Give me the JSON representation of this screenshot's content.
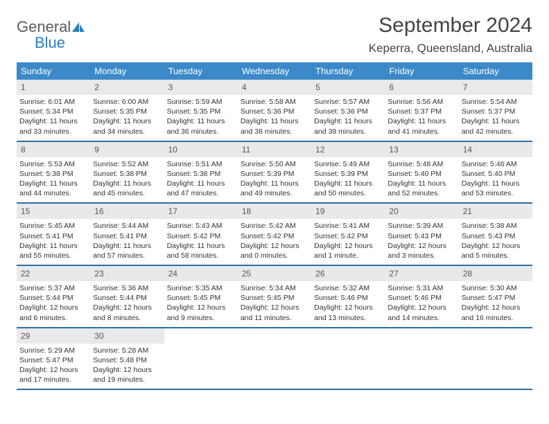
{
  "brand": {
    "general": "General",
    "blue": "Blue"
  },
  "title": "September 2024",
  "location": "Keperra, Queensland, Australia",
  "colors": {
    "header_bg": "#3b89c9",
    "week_border": "#2e6da4",
    "daynum_bg": "#e9e9e9",
    "logo_gray": "#5a5a5a",
    "logo_blue": "#2a7fbf"
  },
  "dow": [
    "Sunday",
    "Monday",
    "Tuesday",
    "Wednesday",
    "Thursday",
    "Friday",
    "Saturday"
  ],
  "days": [
    {
      "n": "1",
      "sr": "6:01 AM",
      "ss": "5:34 PM",
      "dl": "11 hours and 33 minutes."
    },
    {
      "n": "2",
      "sr": "6:00 AM",
      "ss": "5:35 PM",
      "dl": "11 hours and 34 minutes."
    },
    {
      "n": "3",
      "sr": "5:59 AM",
      "ss": "5:35 PM",
      "dl": "11 hours and 36 minutes."
    },
    {
      "n": "4",
      "sr": "5:58 AM",
      "ss": "5:36 PM",
      "dl": "11 hours and 38 minutes."
    },
    {
      "n": "5",
      "sr": "5:57 AM",
      "ss": "5:36 PM",
      "dl": "11 hours and 39 minutes."
    },
    {
      "n": "6",
      "sr": "5:56 AM",
      "ss": "5:37 PM",
      "dl": "11 hours and 41 minutes."
    },
    {
      "n": "7",
      "sr": "5:54 AM",
      "ss": "5:37 PM",
      "dl": "11 hours and 42 minutes."
    },
    {
      "n": "8",
      "sr": "5:53 AM",
      "ss": "5:38 PM",
      "dl": "11 hours and 44 minutes."
    },
    {
      "n": "9",
      "sr": "5:52 AM",
      "ss": "5:38 PM",
      "dl": "11 hours and 45 minutes."
    },
    {
      "n": "10",
      "sr": "5:51 AM",
      "ss": "5:38 PM",
      "dl": "11 hours and 47 minutes."
    },
    {
      "n": "11",
      "sr": "5:50 AM",
      "ss": "5:39 PM",
      "dl": "11 hours and 49 minutes."
    },
    {
      "n": "12",
      "sr": "5:49 AM",
      "ss": "5:39 PM",
      "dl": "11 hours and 50 minutes."
    },
    {
      "n": "13",
      "sr": "5:48 AM",
      "ss": "5:40 PM",
      "dl": "11 hours and 52 minutes."
    },
    {
      "n": "14",
      "sr": "5:46 AM",
      "ss": "5:40 PM",
      "dl": "11 hours and 53 minutes."
    },
    {
      "n": "15",
      "sr": "5:45 AM",
      "ss": "5:41 PM",
      "dl": "11 hours and 55 minutes."
    },
    {
      "n": "16",
      "sr": "5:44 AM",
      "ss": "5:41 PM",
      "dl": "11 hours and 57 minutes."
    },
    {
      "n": "17",
      "sr": "5:43 AM",
      "ss": "5:42 PM",
      "dl": "11 hours and 58 minutes."
    },
    {
      "n": "18",
      "sr": "5:42 AM",
      "ss": "5:42 PM",
      "dl": "12 hours and 0 minutes."
    },
    {
      "n": "19",
      "sr": "5:41 AM",
      "ss": "5:42 PM",
      "dl": "12 hours and 1 minute."
    },
    {
      "n": "20",
      "sr": "5:39 AM",
      "ss": "5:43 PM",
      "dl": "12 hours and 3 minutes."
    },
    {
      "n": "21",
      "sr": "5:38 AM",
      "ss": "5:43 PM",
      "dl": "12 hours and 5 minutes."
    },
    {
      "n": "22",
      "sr": "5:37 AM",
      "ss": "5:44 PM",
      "dl": "12 hours and 6 minutes."
    },
    {
      "n": "23",
      "sr": "5:36 AM",
      "ss": "5:44 PM",
      "dl": "12 hours and 8 minutes."
    },
    {
      "n": "24",
      "sr": "5:35 AM",
      "ss": "5:45 PM",
      "dl": "12 hours and 9 minutes."
    },
    {
      "n": "25",
      "sr": "5:34 AM",
      "ss": "5:45 PM",
      "dl": "12 hours and 11 minutes."
    },
    {
      "n": "26",
      "sr": "5:32 AM",
      "ss": "5:46 PM",
      "dl": "12 hours and 13 minutes."
    },
    {
      "n": "27",
      "sr": "5:31 AM",
      "ss": "5:46 PM",
      "dl": "12 hours and 14 minutes."
    },
    {
      "n": "28",
      "sr": "5:30 AM",
      "ss": "5:47 PM",
      "dl": "12 hours and 16 minutes."
    },
    {
      "n": "29",
      "sr": "5:29 AM",
      "ss": "5:47 PM",
      "dl": "12 hours and 17 minutes."
    },
    {
      "n": "30",
      "sr": "5:28 AM",
      "ss": "5:48 PM",
      "dl": "12 hours and 19 minutes."
    }
  ],
  "labels": {
    "sunrise": "Sunrise: ",
    "sunset": "Sunset: ",
    "daylight": "Daylight: "
  }
}
